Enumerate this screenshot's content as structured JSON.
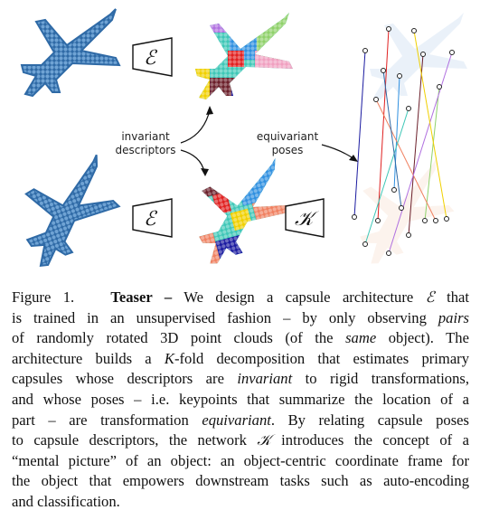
{
  "figure": {
    "operator_encoder": "ℰ",
    "operator_k": "𝒦",
    "label_invariant_line1": "invariant",
    "label_invariant_line2": "descriptors",
    "label_equivariant_line1": "equivariant",
    "label_equivariant_line2": "poses",
    "colors": {
      "cloud": "#3c78b4",
      "parts": [
        "#6b1f2a",
        "#1a1aa0",
        "#f0d000",
        "#3fc7b7",
        "#8fd16a",
        "#f08060",
        "#b070e0",
        "#e02020",
        "#3090e0",
        "#c0a0d0"
      ]
    }
  },
  "caption": {
    "figure_number": "Figure 1.",
    "title": "Teaser –",
    "l1_a": "We design a capsule architecture",
    "l1_sym": "ℰ",
    "l1_b": "that",
    "l2_a": "is trained in an unsupervised fashion – by only observing",
    "l2_em": "pairs",
    "l3_a": "of randomly rotated 3D point clouds (of the",
    "l3_em": "same",
    "l3_b": "object).  The",
    "l4_a": "architecture builds a",
    "l4_k": "K",
    "l4_b": "-fold decomposition that estimates primary",
    "l5_a": "capsules whose descriptors are",
    "l5_em": "invariant",
    "l5_b": "to rigid transformations,",
    "l6": "and whose poses – i.e. keypoints that summarize the location of a",
    "l7_a": "part – are transformation",
    "l7_em": "equivariant",
    "l7_b": ". By relating capsule poses",
    "l8_a": "to capsule descriptors, the network",
    "l8_sym": "𝒦",
    "l8_b": "introduces the concept of a",
    "l9": "“mental picture” of an object: an object-centric coordinate frame for",
    "l10": "the object that empowers downstream tasks such as auto-encoding",
    "l11": "and classification."
  }
}
